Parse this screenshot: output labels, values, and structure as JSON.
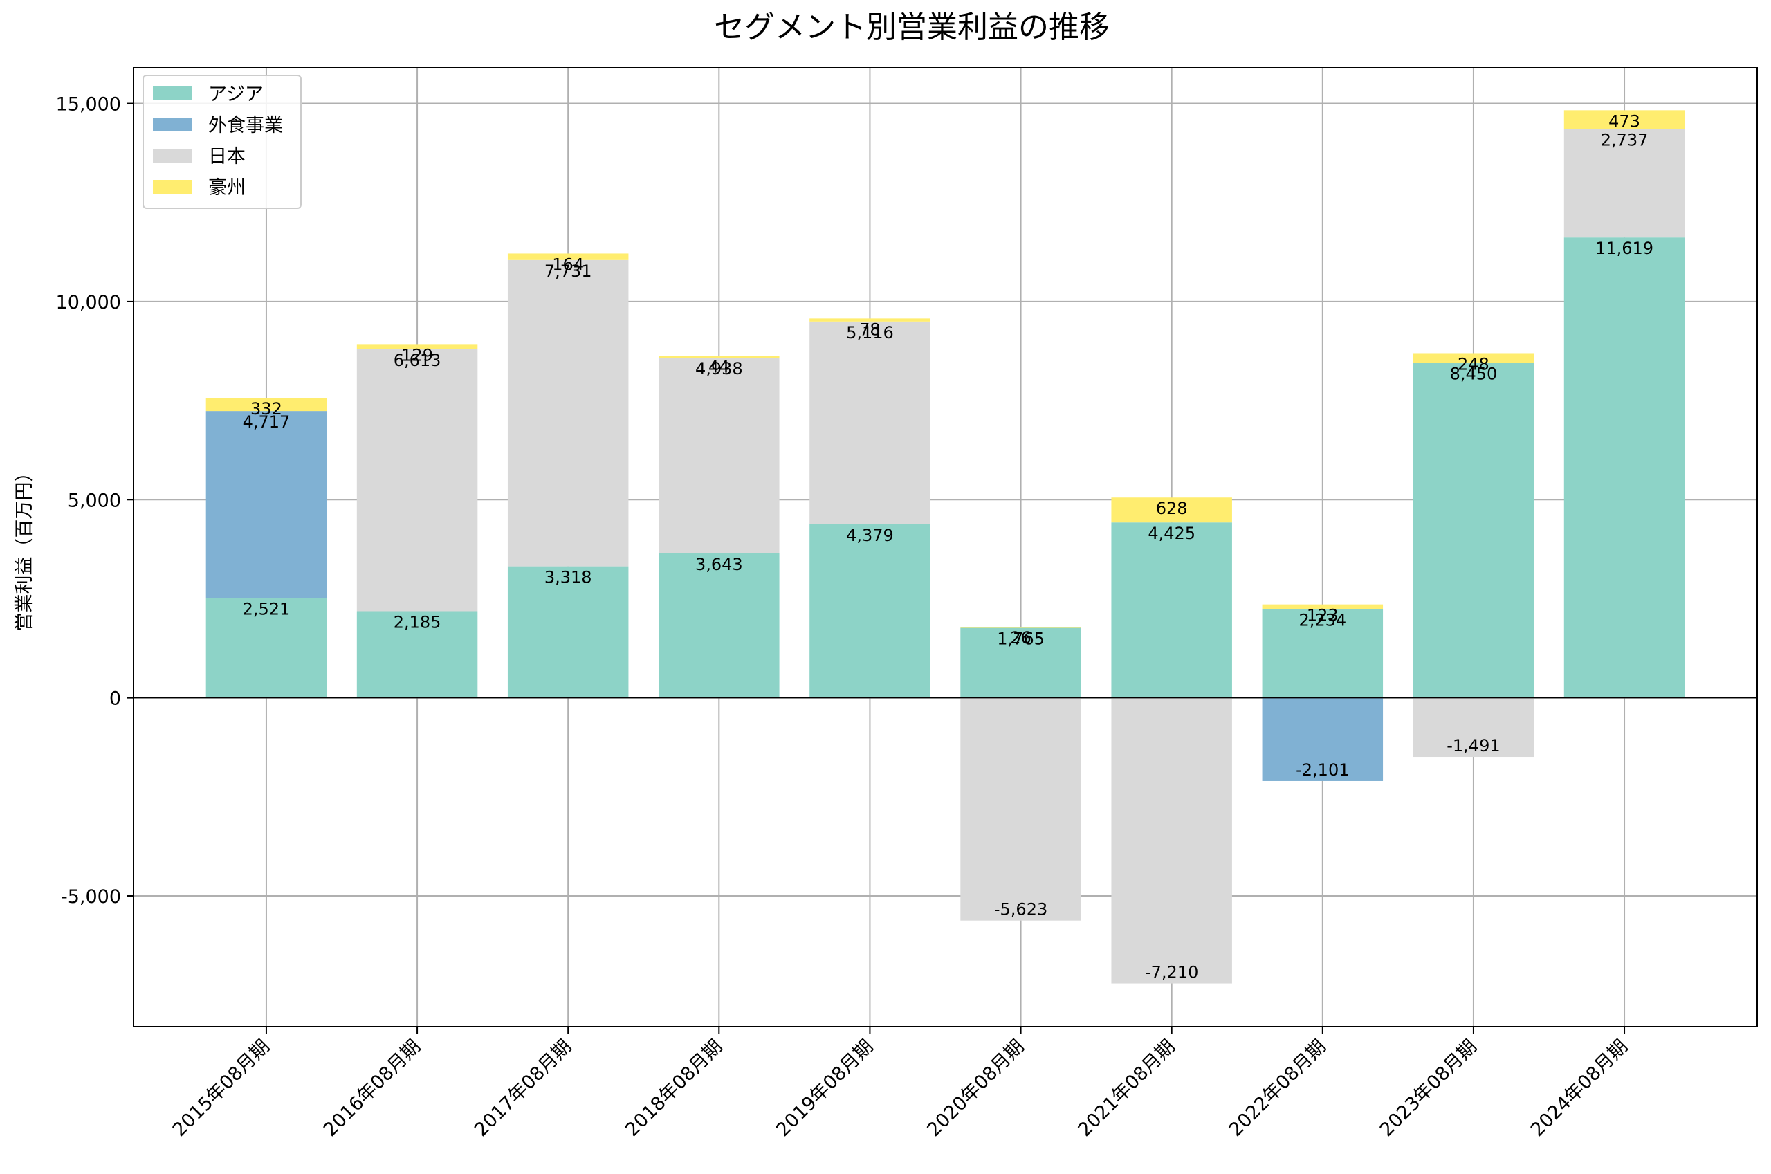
{
  "chart_data": {
    "type": "bar",
    "stacked": true,
    "title": "セグメント別営業利益の推移",
    "xlabel": "",
    "ylabel": "営業利益（百万円）",
    "ylim": [
      -8300,
      15900
    ],
    "yticks": [
      -5000,
      0,
      5000,
      10000,
      15000
    ],
    "ytick_labels": [
      "-5,000",
      "0",
      "5,000",
      "10,000",
      "15,000"
    ],
    "grid": true,
    "legend_position": "top-left",
    "categories": [
      "2015年08月期",
      "2016年08月期",
      "2017年08月期",
      "2018年08月期",
      "2019年08月期",
      "2020年08月期",
      "2021年08月期",
      "2022年08月期",
      "2023年08月期",
      "2024年08月期"
    ],
    "series": [
      {
        "name": "アジア",
        "color": "#8dd3c7",
        "values": [
          2521,
          2185,
          3318,
          3643,
          4379,
          1765,
          4425,
          2234,
          8450,
          11619
        ]
      },
      {
        "name": "外食事業",
        "color": "#80b1d3",
        "values": [
          4717,
          null,
          null,
          null,
          null,
          null,
          null,
          -2101,
          null,
          null
        ]
      },
      {
        "name": "日本",
        "color": "#d9d9d9",
        "values": [
          null,
          6613,
          7731,
          4938,
          5116,
          -5623,
          -7210,
          null,
          -1491,
          2737
        ]
      },
      {
        "name": "豪州",
        "color": "#ffed6f",
        "values": [
          332,
          129,
          164,
          44,
          78,
          26,
          628,
          123,
          248,
          473
        ]
      }
    ]
  }
}
